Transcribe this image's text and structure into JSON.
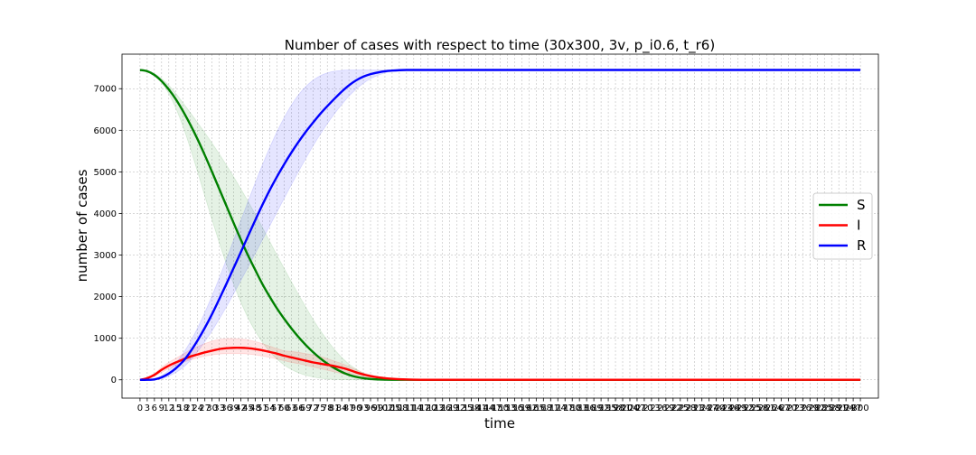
{
  "chart_data": {
    "type": "line",
    "title": "Number of cases with respect to time (30x300, 3v, p_i0.6, t_r6)",
    "xlabel": "time",
    "ylabel": "number of cases",
    "xlim": [
      -7.5,
      307.5
    ],
    "ylim": [
      -440,
      7830
    ],
    "x_ticks": [
      0,
      3,
      6,
      9,
      12,
      15,
      18,
      21,
      24,
      27,
      30,
      33,
      36,
      39,
      42,
      45,
      48,
      51,
      54,
      57,
      60,
      63,
      66,
      69,
      72,
      75,
      78,
      81,
      84,
      87,
      90,
      93,
      96,
      99,
      102,
      105,
      108,
      111,
      114,
      117,
      120,
      123,
      126,
      129,
      132,
      135,
      138,
      141,
      144,
      147,
      150,
      153,
      156,
      159,
      162,
      165,
      168,
      171,
      174,
      177,
      180,
      183,
      186,
      189,
      192,
      195,
      198,
      201,
      204,
      207,
      210,
      213,
      216,
      219,
      222,
      225,
      228,
      231,
      234,
      237,
      240,
      243,
      246,
      249,
      252,
      255,
      258,
      261,
      264,
      267,
      270,
      273,
      276,
      279,
      282,
      285,
      288,
      291,
      294,
      297,
      300
    ],
    "y_ticks": [
      0,
      1000,
      2000,
      3000,
      4000,
      5000,
      6000,
      7000
    ],
    "grid": true,
    "legend_position": "center-right",
    "x": [
      0,
      3,
      6,
      9,
      12,
      15,
      18,
      21,
      24,
      27,
      30,
      33,
      36,
      39,
      42,
      45,
      48,
      51,
      54,
      57,
      60,
      63,
      66,
      69,
      72,
      75,
      78,
      81,
      84,
      87,
      90,
      93,
      96,
      99,
      102,
      105,
      108,
      111,
      114,
      117,
      120,
      130,
      140,
      150,
      160,
      180,
      200,
      220,
      240,
      260,
      280,
      300
    ],
    "series": [
      {
        "name": "S",
        "color": "#008000",
        "values": [
          7450,
          7420,
          7330,
          7180,
          6980,
          6740,
          6450,
          6130,
          5780,
          5400,
          5000,
          4590,
          4180,
          3770,
          3370,
          2990,
          2640,
          2300,
          2000,
          1720,
          1470,
          1240,
          1030,
          840,
          670,
          520,
          390,
          280,
          190,
          120,
          70,
          40,
          20,
          10,
          5,
          2,
          1,
          0,
          0,
          0,
          0,
          0,
          0,
          0,
          0,
          0,
          0,
          0,
          0,
          0,
          0,
          0
        ],
        "lower": [
          7450,
          7420,
          7330,
          7150,
          6880,
          6520,
          6080,
          5560,
          5000,
          4420,
          3850,
          3300,
          2780,
          2300,
          1870,
          1490,
          1170,
          900,
          680,
          500,
          360,
          250,
          170,
          110,
          70,
          40,
          20,
          10,
          5,
          2,
          1,
          0,
          0,
          0,
          0,
          0,
          0,
          0,
          0,
          0,
          0,
          0,
          0,
          0,
          0,
          0,
          0,
          0,
          0,
          0,
          0,
          0
        ],
        "upper": [
          7450,
          7430,
          7360,
          7240,
          7080,
          6880,
          6650,
          6420,
          6180,
          5940,
          5690,
          5430,
          5160,
          4880,
          4590,
          4290,
          3980,
          3660,
          3330,
          3000,
          2680,
          2360,
          2050,
          1750,
          1460,
          1190,
          950,
          730,
          540,
          380,
          260,
          160,
          100,
          60,
          30,
          15,
          5,
          2,
          0,
          0,
          0,
          0,
          0,
          0,
          0,
          0,
          0,
          0,
          0,
          0,
          0,
          0
        ]
      },
      {
        "name": "I",
        "color": "#ff0000",
        "values": [
          0,
          40,
          120,
          240,
          340,
          420,
          490,
          560,
          610,
          660,
          700,
          740,
          760,
          770,
          770,
          760,
          740,
          710,
          670,
          630,
          580,
          540,
          500,
          460,
          420,
          390,
          360,
          330,
          290,
          240,
          180,
          130,
          90,
          60,
          40,
          25,
          15,
          8,
          4,
          2,
          1,
          0,
          0,
          0,
          0,
          0,
          0,
          0,
          0,
          0,
          0,
          0
        ],
        "lower": [
          0,
          30,
          90,
          180,
          270,
          350,
          420,
          480,
          530,
          570,
          600,
          620,
          630,
          630,
          630,
          620,
          600,
          570,
          540,
          500,
          460,
          420,
          390,
          350,
          310,
          270,
          230,
          190,
          150,
          110,
          80,
          55,
          35,
          20,
          10,
          5,
          2,
          0,
          0,
          0,
          0,
          0,
          0,
          0,
          0,
          0,
          0,
          0,
          0,
          0,
          0,
          0
        ],
        "upper": [
          0,
          50,
          150,
          300,
          420,
          520,
          620,
          720,
          800,
          870,
          930,
          970,
          990,
          990,
          980,
          960,
          920,
          870,
          810,
          750,
          700,
          680,
          660,
          630,
          600,
          560,
          510,
          450,
          390,
          320,
          240,
          170,
          120,
          80,
          50,
          30,
          18,
          10,
          5,
          2,
          1,
          0,
          0,
          0,
          0,
          0,
          0,
          0,
          0,
          0,
          0,
          0
        ]
      },
      {
        "name": "R",
        "color": "#0000ff",
        "values": [
          0,
          0,
          10,
          60,
          150,
          280,
          450,
          680,
          950,
          1250,
          1580,
          1940,
          2310,
          2690,
          3070,
          3460,
          3840,
          4210,
          4560,
          4880,
          5180,
          5460,
          5720,
          5960,
          6180,
          6390,
          6580,
          6760,
          6930,
          7080,
          7200,
          7290,
          7350,
          7390,
          7420,
          7435,
          7445,
          7450,
          7450,
          7450,
          7450,
          7450,
          7450,
          7450,
          7450,
          7450,
          7450,
          7450,
          7450,
          7450,
          7450,
          7450
        ],
        "lower": [
          0,
          0,
          5,
          30,
          90,
          180,
          300,
          470,
          680,
          920,
          1180,
          1460,
          1760,
          2070,
          2390,
          2710,
          3040,
          3370,
          3700,
          4030,
          4360,
          4690,
          5010,
          5320,
          5620,
          5900,
          6160,
          6400,
          6620,
          6820,
          6990,
          7130,
          7240,
          7320,
          7380,
          7420,
          7440,
          7450,
          7450,
          7450,
          7450,
          7450,
          7450,
          7450,
          7450,
          7450,
          7450,
          7450,
          7450,
          7450,
          7450,
          7450
        ],
        "upper": [
          0,
          0,
          20,
          100,
          230,
          410,
          640,
          920,
          1250,
          1620,
          2020,
          2450,
          2900,
          3360,
          3830,
          4290,
          4740,
          5170,
          5580,
          5960,
          6300,
          6600,
          6850,
          7050,
          7200,
          7310,
          7380,
          7420,
          7440,
          7450,
          7450,
          7450,
          7450,
          7450,
          7450,
          7450,
          7450,
          7450,
          7450,
          7450,
          7450,
          7450,
          7450,
          7450,
          7450,
          7450,
          7450,
          7450,
          7450,
          7450,
          7450,
          7450
        ]
      }
    ]
  }
}
